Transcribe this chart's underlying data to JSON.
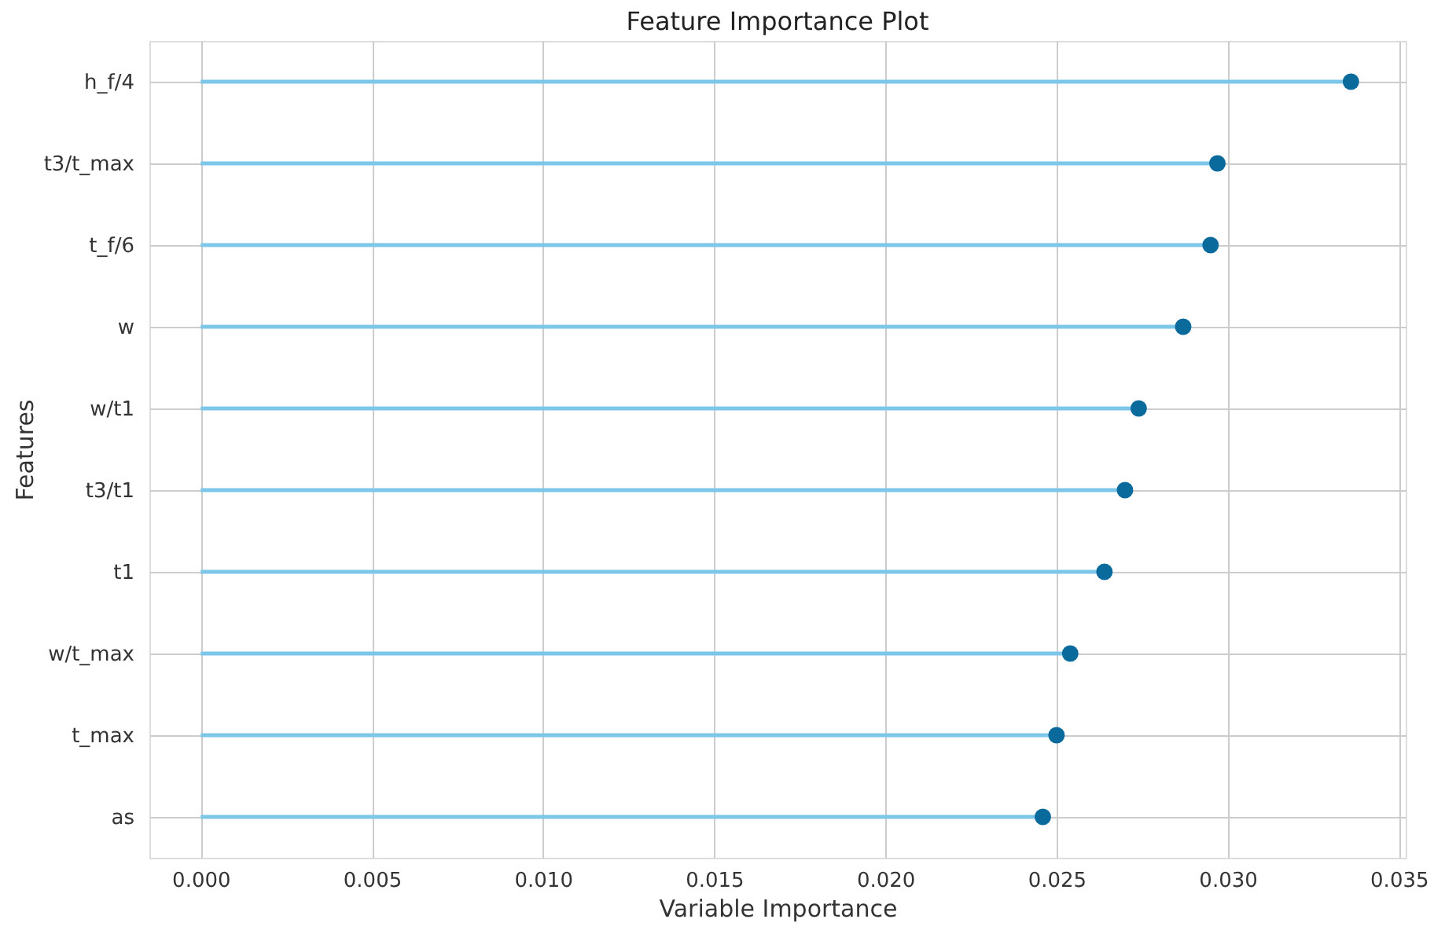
{
  "chart_data": {
    "type": "lollipop",
    "orientation": "horizontal",
    "title": "Feature Importance Plot",
    "xlabel": "Variable Importance",
    "ylabel": "Features",
    "categories": [
      "h_f/4",
      "t3/t_max",
      "t_f/6",
      "w",
      "w/t1",
      "t3/t1",
      "t1",
      "w/t_max",
      "t_max",
      "as"
    ],
    "values": [
      0.0336,
      0.0297,
      0.0295,
      0.0287,
      0.0274,
      0.027,
      0.0264,
      0.0254,
      0.025,
      0.0246
    ],
    "color": "#0b6a9c",
    "xlim": [
      -0.0015,
      0.0352
    ],
    "xticks": [
      {
        "value": 0,
        "label": "0.000"
      },
      {
        "value": 0.005,
        "label": "0.005"
      },
      {
        "value": 0.01,
        "label": "0.010"
      },
      {
        "value": 0.015,
        "label": "0.015"
      },
      {
        "value": 0.02,
        "label": "0.020"
      },
      {
        "value": 0.025,
        "label": "0.025"
      },
      {
        "value": 0.03,
        "label": "0.030"
      },
      {
        "value": 0.035,
        "label": "0.035"
      }
    ],
    "grid": true,
    "marker": "circle"
  }
}
